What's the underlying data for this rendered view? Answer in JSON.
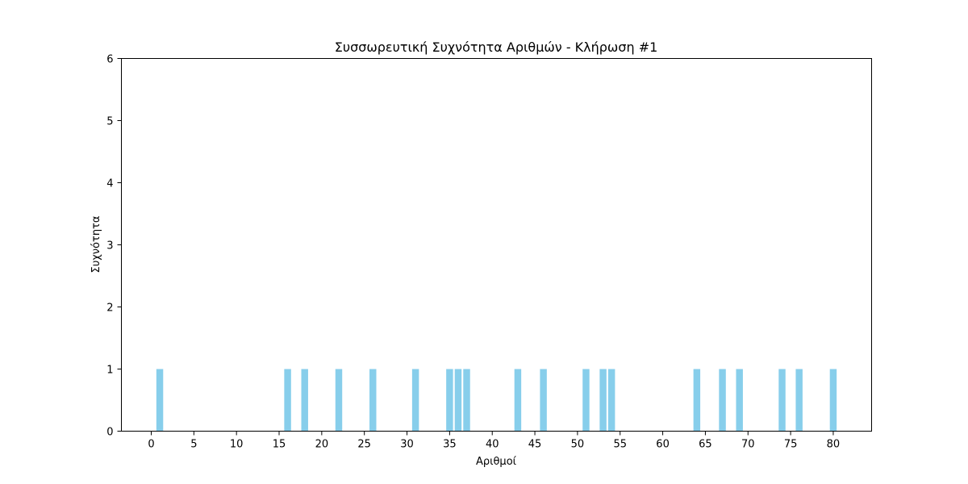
{
  "chart_data": {
    "type": "bar",
    "title": "Συσσωρευτική Συχνότητα Αριθμών - Κλήρωση #1",
    "xlabel": "Αριθμοί",
    "ylabel": "Συχνότητα",
    "xlim": [
      -3.5,
      84.5
    ],
    "ylim": [
      0,
      6
    ],
    "xticks": [
      0,
      5,
      10,
      15,
      20,
      25,
      30,
      35,
      40,
      45,
      50,
      55,
      60,
      65,
      70,
      75,
      80
    ],
    "yticks": [
      0,
      1,
      2,
      3,
      4,
      5,
      6
    ],
    "grid": false,
    "bar_color": "#87ceeb",
    "x": [
      1,
      16,
      18,
      22,
      26,
      31,
      35,
      36,
      37,
      43,
      46,
      51,
      53,
      54,
      64,
      67,
      69,
      74,
      76,
      80
    ],
    "values": [
      1,
      1,
      1,
      1,
      1,
      1,
      1,
      1,
      1,
      1,
      1,
      1,
      1,
      1,
      1,
      1,
      1,
      1,
      1,
      1
    ]
  }
}
